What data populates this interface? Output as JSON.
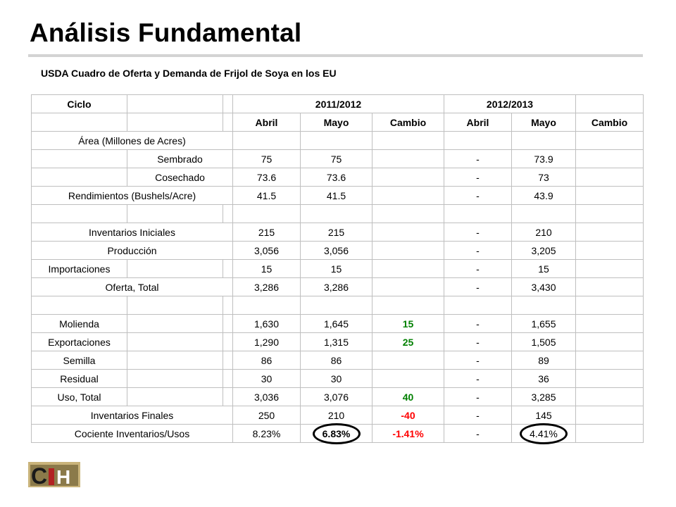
{
  "title": "Análisis Fundamental",
  "subtitle": "USDA Cuadro de Oferta y Demanda de Frijol de Soya en los EU",
  "table": {
    "header1": {
      "ciclo": "Ciclo",
      "y1": "2011/2012",
      "y2": "2012/2013"
    },
    "header2": {
      "abril1": "Abril",
      "mayo1": "Mayo",
      "cambio1": "Cambio",
      "abril2": "Abril",
      "mayo2": "Mayo",
      "cambio2": "Cambio"
    },
    "area_label": "Área (Millones de Acres)",
    "rows": {
      "sembrado": {
        "label": "Sembrado",
        "abril": "75",
        "mayo": "75",
        "cambio": "",
        "abril2": "-",
        "mayo2": "73.9"
      },
      "cosechado": {
        "label": "Cosechado",
        "abril": "73.6",
        "mayo": "73.6",
        "cambio": "",
        "abril2": "-",
        "mayo2": "73"
      },
      "rendimientos": {
        "label": "Rendimientos (Bushels/Acre)",
        "abril": "41.5",
        "mayo": "41.5",
        "cambio": "",
        "abril2": "-",
        "mayo2": "43.9"
      },
      "inv_iniciales": {
        "label": "Inventarios Iniciales",
        "abril": "215",
        "mayo": "215",
        "cambio": "",
        "abril2": "-",
        "mayo2": "210"
      },
      "produccion": {
        "label": "Producción",
        "abril": "3,056",
        "mayo": "3,056",
        "cambio": "",
        "abril2": "-",
        "mayo2": "3,205"
      },
      "importaciones": {
        "label": "Importaciones",
        "abril": "15",
        "mayo": "15",
        "cambio": "",
        "abril2": "-",
        "mayo2": "15"
      },
      "oferta_total": {
        "label": "Oferta, Total",
        "abril": "3,286",
        "mayo": "3,286",
        "cambio": "",
        "abril2": "-",
        "mayo2": "3,430"
      },
      "molienda": {
        "label": "Molienda",
        "abril": "1,630",
        "mayo": "1,645",
        "cambio": "15",
        "abril2": "-",
        "mayo2": "1,655"
      },
      "exportaciones": {
        "label": "Exportaciones",
        "abril": "1,290",
        "mayo": "1,315",
        "cambio": "25",
        "abril2": "-",
        "mayo2": "1,505"
      },
      "semilla": {
        "label": "Semilla",
        "abril": "86",
        "mayo": "86",
        "cambio": "",
        "abril2": "-",
        "mayo2": "89"
      },
      "residual": {
        "label": "Residual",
        "abril": "30",
        "mayo": "30",
        "cambio": "",
        "abril2": "-",
        "mayo2": "36"
      },
      "uso_total": {
        "label": "Uso, Total",
        "abril": "3,036",
        "mayo": "3,076",
        "cambio": "40",
        "abril2": "-",
        "mayo2": "3,285"
      },
      "inv_finales": {
        "label": "Inventarios Finales",
        "abril": "250",
        "mayo": "210",
        "cambio": "-40",
        "abril2": "-",
        "mayo2": "145"
      },
      "cociente": {
        "label": "Cociente Inventarios/Usos",
        "abril": "8.23%",
        "mayo": "6.83%",
        "cambio": "-1.41%",
        "abril2": "-",
        "mayo2": "4.41%"
      }
    }
  },
  "logo": {
    "text": "CIH"
  },
  "colors": {
    "positive": "#008000",
    "negative": "#ff0000",
    "rule": "#d3d3d3",
    "grid": "#bfbfbf"
  }
}
